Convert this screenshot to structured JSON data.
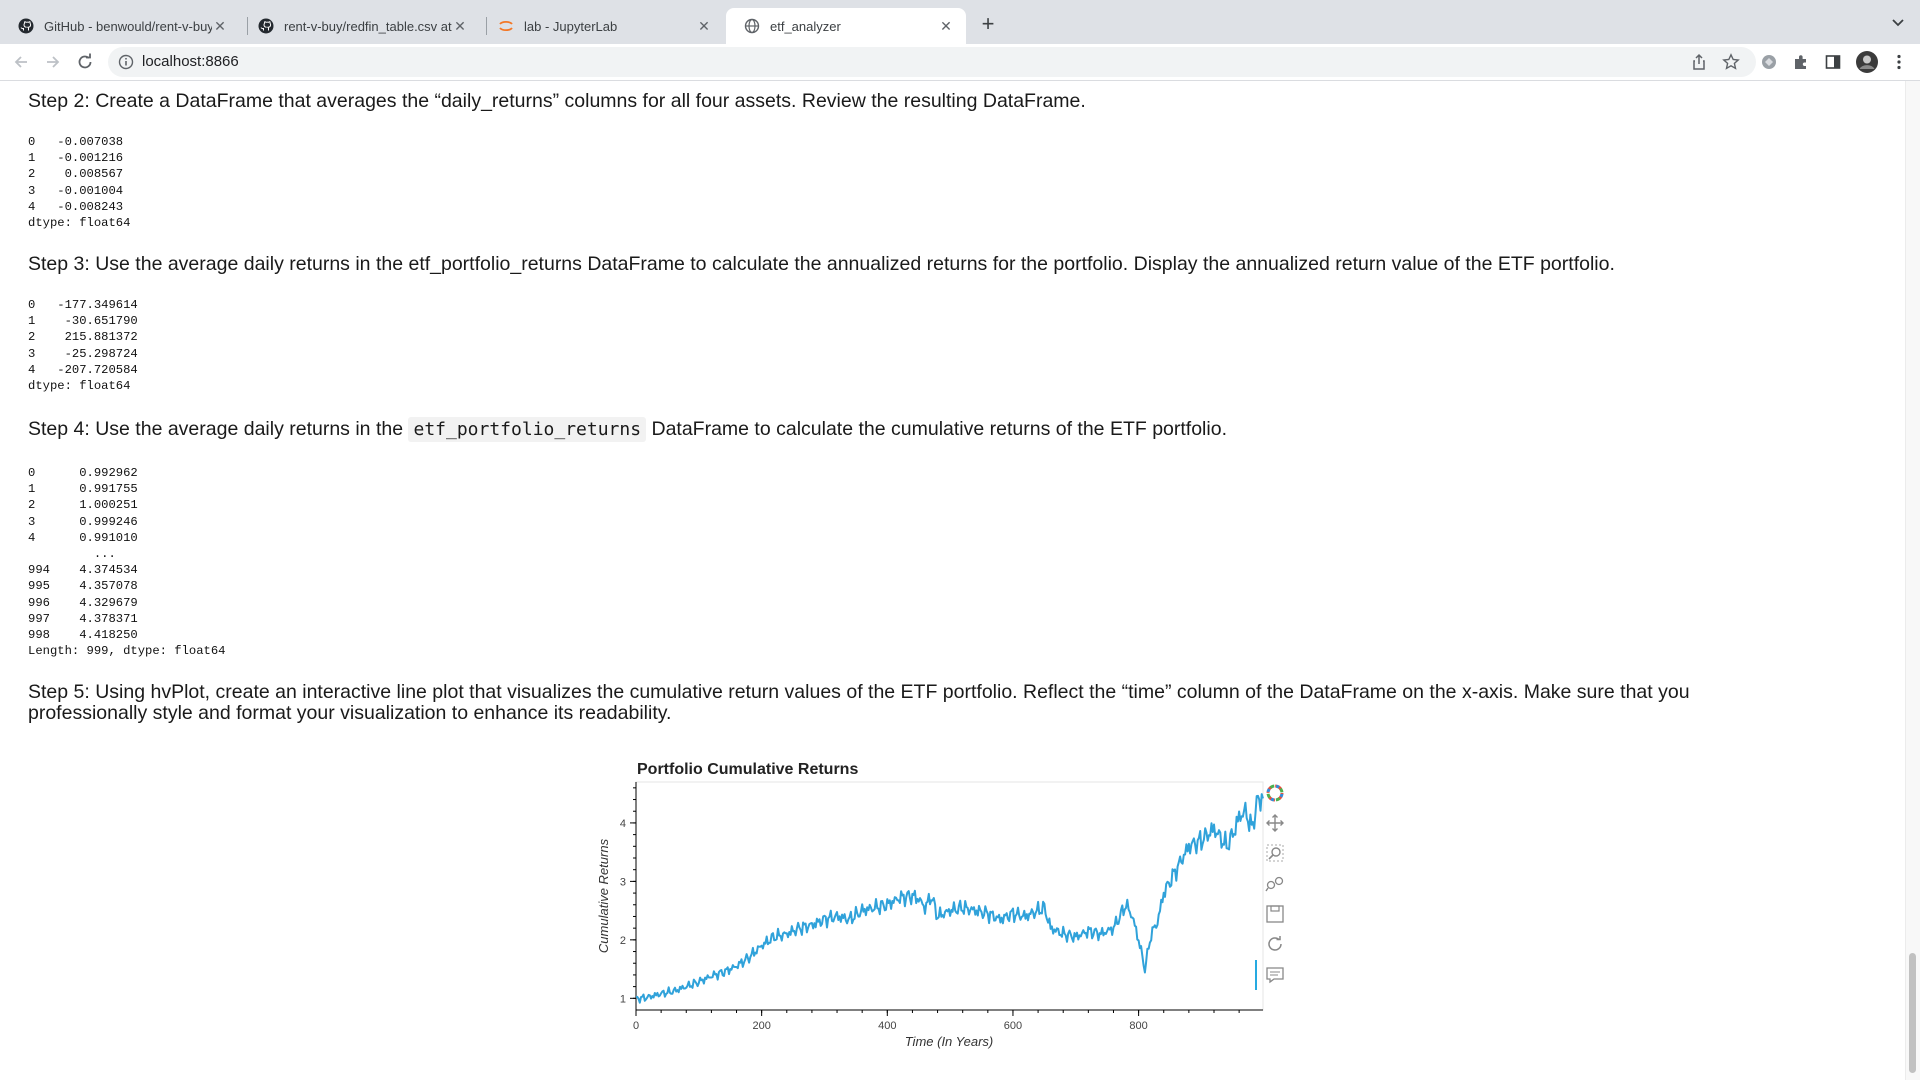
{
  "browser": {
    "tabs": [
      {
        "title": "GitHub - benwould/rent-v-buy",
        "icon": "github-icon"
      },
      {
        "title": "rent-v-buy/redfin_table.csv at",
        "icon": "github-icon"
      },
      {
        "title": "lab - JupyterLab",
        "icon": "jupyter-icon"
      },
      {
        "title": "etf_analyzer",
        "icon": "globe-icon"
      }
    ],
    "active_tab": 3,
    "url": "localhost:8866"
  },
  "notebook": {
    "step2": {
      "heading": "Step 2: Create a DataFrame that averages the “daily_returns” columns for all four assets. Review the resulting DataFrame.",
      "output": "0   -0.007038\n1   -0.001216\n2    0.008567\n3   -0.001004\n4   -0.008243\ndtype: float64"
    },
    "step3": {
      "heading": "Step 3: Use the average daily returns in the etf_portfolio_returns DataFrame to calculate the annualized returns for the portfolio. Display the annualized return value of the ETF portfolio.",
      "output": "0   -177.349614\n1    -30.651790\n2    215.881372\n3    -25.298724\n4   -207.720584\ndtype: float64"
    },
    "step4": {
      "heading_before": "Step 4: Use the average daily returns in the ",
      "heading_code": "etf_portfolio_returns",
      "heading_after": " DataFrame to calculate the cumulative returns of the ETF portfolio.",
      "output": "0      0.992962\n1      0.991755\n2      1.000251\n3      0.999246\n4      0.991010\n         ...\n994    4.374534\n995    4.357078\n996    4.329679\n997    4.378371\n998    4.418250\nLength: 999, dtype: float64"
    },
    "step5": {
      "heading": "Step 5: Using hvPlot, create an interactive line plot that visualizes the cumulative return values of the ETF portfolio. Reflect the “time” column of the DataFrame on the x-axis. Make sure that you professionally style and format your visualization to enhance its readability."
    }
  },
  "chart_data": {
    "type": "line",
    "title": "Portfolio Cumulative Returns",
    "xlabel": "Time (In Years)",
    "ylabel": "Cumulative Returns",
    "xlim": [
      0,
      998
    ],
    "ylim": [
      0.8,
      4.7
    ],
    "xticks": [
      0,
      200,
      400,
      600,
      800
    ],
    "yticks": [
      1,
      2,
      3,
      4
    ],
    "color": "#30a2da",
    "grid": false,
    "legend": "none",
    "series": [
      {
        "x": [
          0,
          20,
          40,
          60,
          80,
          100,
          120,
          140,
          160,
          180,
          200,
          220,
          240,
          260,
          280,
          300,
          320,
          340,
          360,
          380,
          400,
          420,
          440,
          450,
          460,
          470,
          480,
          500,
          520,
          540,
          560,
          580,
          600,
          620,
          640,
          650,
          660,
          680,
          700,
          720,
          740,
          760,
          780,
          790,
          800,
          810,
          820,
          830,
          840,
          860,
          880,
          900,
          920,
          940,
          950,
          960,
          970,
          980,
          990,
          998
        ],
        "y": [
          0.99,
          1.02,
          1.08,
          1.12,
          1.2,
          1.28,
          1.38,
          1.45,
          1.55,
          1.7,
          1.9,
          2.05,
          2.1,
          2.2,
          2.25,
          2.35,
          2.4,
          2.35,
          2.5,
          2.55,
          2.6,
          2.72,
          2.75,
          2.7,
          2.55,
          2.75,
          2.4,
          2.5,
          2.55,
          2.5,
          2.45,
          2.35,
          2.45,
          2.4,
          2.5,
          2.55,
          2.2,
          2.1,
          2.05,
          2.15,
          2.1,
          2.2,
          2.6,
          2.4,
          2.0,
          1.5,
          2.1,
          2.3,
          2.8,
          3.2,
          3.6,
          3.7,
          3.9,
          3.6,
          3.8,
          4.1,
          4.2,
          3.9,
          4.4,
          4.42
        ]
      }
    ]
  },
  "plot_tools": [
    "bokeh-logo-icon",
    "pan-icon",
    "box-zoom-icon",
    "wheel-zoom-icon",
    "save-icon",
    "reset-icon",
    "hover-icon"
  ]
}
